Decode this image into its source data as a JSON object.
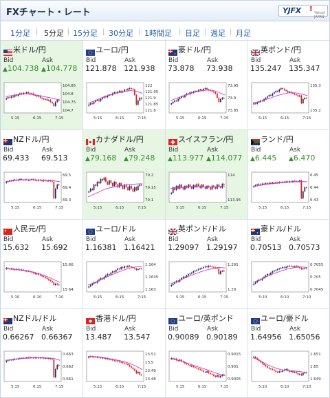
{
  "app_title": "FXチャート・レート",
  "logo": {
    "text": "YJFX",
    "mark": "!",
    "sub": "Yahoo! JAPAN"
  },
  "tabs": [
    "1分足",
    "5分足",
    "15分足",
    "30分足",
    "1時間足",
    "日足",
    "週足",
    "月足"
  ],
  "active_tab": "5分足",
  "labels": {
    "bid": "Bid",
    "ask": "Ask"
  },
  "colors": {
    "up": "#3a8e2c",
    "highlight_bg": "#e6f6e3",
    "link": "#1e5ea8",
    "candle_up": "#1d2f6b",
    "candle_down": "#e02020",
    "moving_average": "#cc33cc"
  },
  "pairs": [
    {
      "name": "米ドル/円",
      "flag": "us",
      "bid": "104.738",
      "ask": "104.778",
      "up": true,
      "highlight": true,
      "ticks": [
        "104.85",
        "104.8",
        "104.75",
        "104.7"
      ],
      "x_labels": [
        "5:15",
        "6:15",
        "7:15"
      ],
      "candles": [
        0.48,
        0.52,
        0.5,
        0.55,
        0.53,
        0.6,
        0.57,
        0.62,
        0.66,
        0.63,
        0.68,
        0.66,
        0.7,
        0.67,
        0.64,
        0.66,
        0.6,
        0.58,
        0.55,
        0.57,
        0.5,
        0.47,
        0.44,
        0.46,
        0.4,
        0.42,
        0.35,
        0.3,
        0.2,
        0.35,
        0.42,
        0.4
      ],
      "ma": [
        0.55,
        0.58,
        0.62,
        0.64,
        0.63,
        0.6,
        0.56,
        0.52,
        0.47,
        0.42
      ]
    },
    {
      "name": "ユーロ/円",
      "flag": "eu",
      "bid": "121.878",
      "ask": "121.938",
      "up": false,
      "highlight": false,
      "ticks": [
        "122",
        "121.95",
        "121.9",
        "121.85",
        "121.8"
      ],
      "x_labels": [
        "5:15",
        "6:15",
        "7:15"
      ],
      "candles": [
        0.25,
        0.3,
        0.28,
        0.35,
        0.4,
        0.42,
        0.38,
        0.45,
        0.5,
        0.55,
        0.52,
        0.58,
        0.62,
        0.6,
        0.66,
        0.7,
        0.68,
        0.72,
        0.75,
        0.7,
        0.73,
        0.8,
        0.77,
        0.82,
        0.85,
        0.83,
        0.8,
        0.6,
        0.25,
        0.4,
        0.5,
        0.45
      ],
      "ma": [
        0.3,
        0.38,
        0.48,
        0.56,
        0.62,
        0.68,
        0.72,
        0.76,
        0.74,
        0.66
      ]
    },
    {
      "name": "豪ドル/円",
      "flag": "au",
      "bid": "73.878",
      "ask": "73.938",
      "up": false,
      "highlight": false,
      "ticks": [
        "73.95",
        "73.9",
        "73.85"
      ],
      "x_labels": [
        "5:15",
        "6:15",
        "7:15"
      ],
      "candles": [
        0.3,
        0.35,
        0.4,
        0.38,
        0.45,
        0.5,
        0.55,
        0.52,
        0.6,
        0.65,
        0.62,
        0.7,
        0.68,
        0.72,
        0.75,
        0.73,
        0.78,
        0.8,
        0.76,
        0.82,
        0.85,
        0.8,
        0.78,
        0.75,
        0.72,
        0.7,
        0.65,
        0.5,
        0.35,
        0.45,
        0.5,
        0.48
      ],
      "ma": [
        0.4,
        0.48,
        0.56,
        0.64,
        0.7,
        0.75,
        0.78,
        0.77,
        0.7,
        0.6
      ]
    },
    {
      "name": "英ポンド/円",
      "flag": "gb",
      "bid": "135.247",
      "ask": "135.347",
      "up": false,
      "highlight": false,
      "ticks": [
        "135.3",
        "135.2"
      ],
      "x_labels": [
        "5:15",
        "6:15",
        "7:15"
      ],
      "candles": [
        0.3,
        0.28,
        0.33,
        0.35,
        0.4,
        0.38,
        0.45,
        0.5,
        0.55,
        0.6,
        0.58,
        0.65,
        0.7,
        0.75,
        0.72,
        0.8,
        0.85,
        0.82,
        0.78,
        0.75,
        0.7,
        0.72,
        0.68,
        0.65,
        0.62,
        0.6,
        0.55,
        0.58,
        0.3,
        0.45,
        0.5,
        0.48
      ],
      "ma": [
        0.32,
        0.36,
        0.42,
        0.5,
        0.58,
        0.64,
        0.68,
        0.68,
        0.64,
        0.58
      ]
    },
    {
      "name": "NZドル/円",
      "flag": "nz",
      "bid": "69.433",
      "ask": "69.513",
      "up": false,
      "highlight": false,
      "ticks": [
        "69.5",
        "69.4",
        "69.3"
      ],
      "x_labels": [
        "5:15",
        "6:15",
        "7:15"
      ],
      "candles": [
        0.7,
        0.72,
        0.75,
        0.73,
        0.76,
        0.78,
        0.75,
        0.77,
        0.8,
        0.78,
        0.76,
        0.79,
        0.77,
        0.75,
        0.78,
        0.8,
        0.78,
        0.76,
        0.74,
        0.77,
        0.75,
        0.73,
        0.76,
        0.74,
        0.72,
        0.75,
        0.73,
        0.7,
        0.1,
        0.45,
        0.6,
        0.58
      ],
      "ma": [
        0.7,
        0.73,
        0.76,
        0.77,
        0.77,
        0.76,
        0.76,
        0.75,
        0.74,
        0.7
      ]
    },
    {
      "name": "カナダドル/円",
      "flag": "ca",
      "bid": "79.168",
      "ask": "79.248",
      "up": true,
      "highlight": true,
      "ticks": [
        "79.2",
        "79.15",
        "79.1"
      ],
      "x_labels": [
        "5:15",
        "6:15",
        "7:15"
      ],
      "candles": [
        0.35,
        0.45,
        0.4,
        0.6,
        0.55,
        0.7,
        0.65,
        0.8,
        0.75,
        0.85,
        0.7,
        0.6,
        0.75,
        0.65,
        0.55,
        0.7,
        0.6,
        0.5,
        0.65,
        0.55,
        0.45,
        0.6,
        0.5,
        0.4,
        0.55,
        0.45,
        0.35,
        0.5,
        0.4,
        0.55,
        0.6,
        0.58
      ],
      "ma": [
        0.15,
        0.25,
        0.35,
        0.45,
        0.5,
        0.55,
        0.58,
        0.6,
        0.62,
        0.63
      ]
    },
    {
      "name": "スイスフラン/円",
      "flag": "ch",
      "bid": "113.977",
      "ask": "114.077",
      "up": true,
      "highlight": true,
      "ticks": [
        "114",
        "113.95"
      ],
      "x_labels": [
        "5:15",
        "6:15",
        "7:15"
      ],
      "candles": [
        0.3,
        0.5,
        0.4,
        0.55,
        0.45,
        0.6,
        0.5,
        0.42,
        0.55,
        0.48,
        0.6,
        0.52,
        0.45,
        0.58,
        0.5,
        0.62,
        0.55,
        0.48,
        0.6,
        0.53,
        0.45,
        0.55,
        0.5,
        0.42,
        0.56,
        0.5,
        0.45,
        0.6,
        0.52,
        0.48,
        0.62,
        0.58
      ],
      "ma": [
        0.45,
        0.48,
        0.5,
        0.52,
        0.52,
        0.52,
        0.51,
        0.51,
        0.52,
        0.53
      ]
    },
    {
      "name": "ランド/円",
      "flag": "za",
      "bid": "6.445",
      "ask": "6.470",
      "up": true,
      "highlight": false,
      "ticks": [
        "6.45",
        "6.44",
        "6.43"
      ],
      "x_labels": [
        "5:15",
        "6:15",
        "7:15"
      ],
      "candles": [
        0.55,
        0.58,
        0.6,
        0.62,
        0.6,
        0.63,
        0.62,
        0.65,
        0.63,
        0.66,
        0.64,
        0.67,
        0.65,
        0.68,
        0.66,
        0.69,
        0.67,
        0.7,
        0.68,
        0.71,
        0.69,
        0.72,
        0.7,
        0.73,
        0.71,
        0.72,
        0.7,
        0.75,
        0.1,
        0.35,
        0.5,
        0.48
      ],
      "ma": [
        0.52,
        0.56,
        0.6,
        0.63,
        0.65,
        0.67,
        0.69,
        0.7,
        0.71,
        0.7
      ]
    },
    {
      "name": "人民元/円",
      "flag": "cn",
      "bid": "15.632",
      "ask": "15.692",
      "up": false,
      "highlight": false,
      "ticks": [
        "15.66",
        "15.64"
      ],
      "x_labels": [
        "5:10",
        "6:10",
        "7:10"
      ],
      "candles": [
        0.82,
        0.8,
        0.78,
        0.8,
        0.77,
        0.75,
        0.78,
        0.76,
        0.74,
        0.76,
        0.73,
        0.7,
        0.72,
        0.7,
        0.68,
        0.66,
        0.64,
        0.6,
        0.62,
        0.58,
        0.55,
        0.52,
        0.5,
        0.46,
        0.42,
        0.38,
        0.35,
        0.3,
        0.2,
        0.25,
        0.22,
        0.2
      ],
      "ma": [
        0.8,
        0.78,
        0.76,
        0.73,
        0.7,
        0.65,
        0.58,
        0.5,
        0.4,
        0.3
      ]
    },
    {
      "name": "ユーロ/ドル",
      "flag": "eu",
      "bid": "1.16381",
      "ask": "1.16421",
      "up": false,
      "highlight": false,
      "ticks": [
        "1.164",
        "1.1635",
        "1.163"
      ],
      "x_labels": [
        "5:15",
        "6:15",
        "7:15"
      ],
      "candles": [
        0.15,
        0.2,
        0.25,
        0.3,
        0.28,
        0.35,
        0.4,
        0.45,
        0.42,
        0.5,
        0.55,
        0.6,
        0.58,
        0.65,
        0.7,
        0.68,
        0.75,
        0.8,
        0.78,
        0.85,
        0.82,
        0.88,
        0.85,
        0.9,
        0.87,
        0.85,
        0.82,
        0.8,
        0.75,
        0.78,
        0.8,
        0.79
      ],
      "ma": [
        0.2,
        0.28,
        0.38,
        0.48,
        0.58,
        0.67,
        0.75,
        0.82,
        0.86,
        0.86
      ]
    },
    {
      "name": "英ポンド/ドル",
      "flag": "gb",
      "bid": "1.29097",
      "ask": "1.29197",
      "up": false,
      "highlight": false,
      "ticks": [
        "1.291",
        "1.29"
      ],
      "x_labels": [
        "5:15",
        "6:15",
        "7:15"
      ],
      "candles": [
        0.2,
        0.25,
        0.3,
        0.35,
        0.32,
        0.4,
        0.45,
        0.5,
        0.48,
        0.55,
        0.6,
        0.62,
        0.65,
        0.7,
        0.72,
        0.75,
        0.78,
        0.8,
        0.82,
        0.85,
        0.88,
        0.85,
        0.9,
        0.88,
        0.86,
        0.84,
        0.82,
        0.8,
        0.6,
        0.7,
        0.72,
        0.7
      ],
      "ma": [
        0.25,
        0.33,
        0.42,
        0.52,
        0.6,
        0.68,
        0.75,
        0.8,
        0.84,
        0.82
      ]
    },
    {
      "name": "豪ドル/ドル",
      "flag": "au",
      "bid": "0.70513",
      "ask": "0.70573",
      "up": false,
      "highlight": false,
      "ticks": [
        "0.7055",
        "0.705",
        "0.7045"
      ],
      "x_labels": [
        "5:10",
        "6:10",
        "7:10"
      ],
      "candles": [
        0.25,
        0.3,
        0.35,
        0.4,
        0.38,
        0.45,
        0.5,
        0.55,
        0.6,
        0.58,
        0.65,
        0.7,
        0.72,
        0.75,
        0.78,
        0.8,
        0.82,
        0.85,
        0.83,
        0.86,
        0.88,
        0.9,
        0.88,
        0.86,
        0.88,
        0.9,
        0.85,
        0.82,
        0.78,
        0.8,
        0.82,
        0.8
      ],
      "ma": [
        0.3,
        0.38,
        0.48,
        0.58,
        0.66,
        0.74,
        0.8,
        0.84,
        0.86,
        0.84
      ]
    },
    {
      "name": "NZドル/ドル",
      "flag": "nz",
      "bid": "0.66267",
      "ask": "0.66367",
      "up": false,
      "highlight": false,
      "ticks": [
        "0.663",
        "0.662",
        "0.661"
      ],
      "x_labels": [
        "5:15",
        "6:15",
        "7:15"
      ],
      "candles": [
        0.7,
        0.72,
        0.74,
        0.73,
        0.75,
        0.77,
        0.76,
        0.78,
        0.8,
        0.79,
        0.81,
        0.8,
        0.82,
        0.81,
        0.83,
        0.82,
        0.8,
        0.82,
        0.81,
        0.8,
        0.82,
        0.81,
        0.79,
        0.8,
        0.78,
        0.79,
        0.77,
        0.75,
        0.1,
        0.4,
        0.55,
        0.52
      ],
      "ma": [
        0.72,
        0.74,
        0.77,
        0.79,
        0.8,
        0.81,
        0.81,
        0.8,
        0.79,
        0.72
      ]
    },
    {
      "name": "香港ドル/円",
      "flag": "hk",
      "bid": "13.487",
      "ask": "13.547",
      "up": false,
      "highlight": false,
      "ticks": [
        "13.51",
        "13.5",
        "13.49",
        "13.48"
      ],
      "x_labels": [
        "5:15",
        "6:15",
        "7:15"
      ],
      "candles": [
        0.85,
        0.86,
        0.84,
        0.85,
        0.83,
        0.84,
        0.82,
        0.8,
        0.81,
        0.78,
        0.79,
        0.76,
        0.74,
        0.75,
        0.72,
        0.7,
        0.71,
        0.68,
        0.66,
        0.65,
        0.62,
        0.6,
        0.58,
        0.55,
        0.5,
        0.45,
        0.4,
        0.35,
        0.25,
        0.3,
        0.2,
        0.18
      ],
      "ma": [
        0.86,
        0.85,
        0.83,
        0.8,
        0.76,
        0.72,
        0.67,
        0.6,
        0.5,
        0.38
      ]
    },
    {
      "name": "ユーロ/英ポンド",
      "flag": "eu",
      "bid": "0.90089",
      "ask": "0.90189",
      "up": false,
      "highlight": false,
      "ticks": [
        "0.9015",
        "0.901",
        "0.9005"
      ],
      "x_labels": [
        "5:15",
        "6:15",
        "7:15"
      ],
      "candles": [
        0.8,
        0.75,
        0.78,
        0.72,
        0.7,
        0.74,
        0.68,
        0.65,
        0.6,
        0.58,
        0.55,
        0.5,
        0.52,
        0.48,
        0.45,
        0.42,
        0.4,
        0.38,
        0.35,
        0.3,
        0.28,
        0.32,
        0.25,
        0.22,
        0.2,
        0.15,
        0.12,
        0.18,
        0.1,
        0.15,
        0.2,
        0.18
      ],
      "ma": [
        0.78,
        0.74,
        0.68,
        0.6,
        0.52,
        0.45,
        0.38,
        0.3,
        0.22,
        0.16
      ]
    },
    {
      "name": "ユーロ/豪ドル",
      "flag": "eu",
      "bid": "1.64956",
      "ask": "1.65056",
      "up": false,
      "highlight": false,
      "ticks": [
        "1.651",
        "1.65",
        "1.649"
      ],
      "x_labels": [
        "5:10",
        "6:10",
        "7:10"
      ],
      "candles": [
        0.85,
        0.8,
        0.75,
        0.7,
        0.65,
        0.6,
        0.55,
        0.5,
        0.45,
        0.42,
        0.4,
        0.38,
        0.35,
        0.3,
        0.28,
        0.32,
        0.3,
        0.35,
        0.38,
        0.4,
        0.35,
        0.3,
        0.33,
        0.28,
        0.3,
        0.25,
        0.2,
        0.22,
        0.18,
        0.25,
        0.28,
        0.26
      ],
      "ma": [
        0.82,
        0.72,
        0.6,
        0.5,
        0.42,
        0.36,
        0.34,
        0.33,
        0.3,
        0.26
      ]
    }
  ]
}
